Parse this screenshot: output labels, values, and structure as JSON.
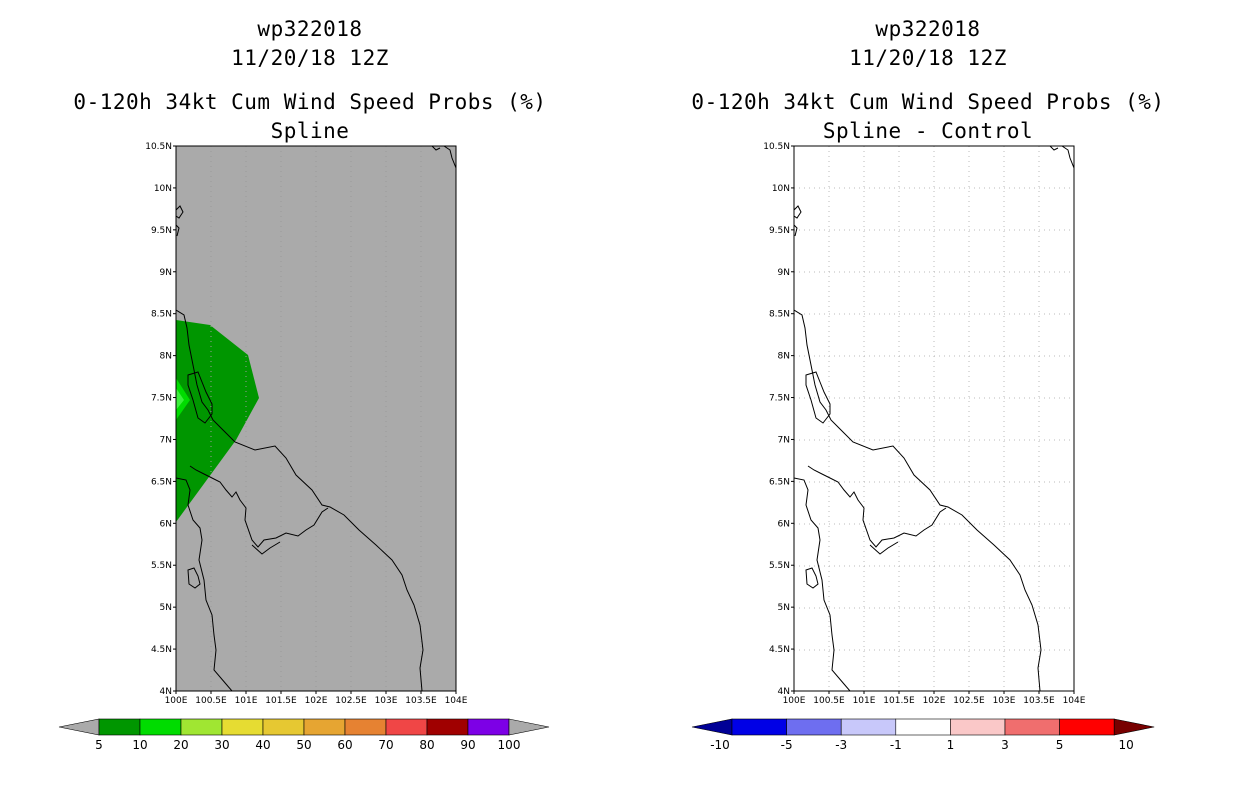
{
  "left_panel": {
    "storm_id": "wp322018",
    "datetime": "11/20/18 12Z",
    "product": "0-120h 34kt Cum Wind Speed Probs (%)",
    "subtitle": "Spline"
  },
  "right_panel": {
    "storm_id": "wp322018",
    "datetime": "11/20/18 12Z",
    "product": "0-120h 34kt Cum Wind Speed Probs (%)",
    "subtitle": "Spline - Control"
  },
  "axes": {
    "lat_ticks": [
      "10.5N",
      "10N",
      "9.5N",
      "9N",
      "8.5N",
      "8N",
      "7.5N",
      "7N",
      "6.5N",
      "6N",
      "5.5N",
      "5N",
      "4.5N",
      "4N"
    ],
    "lon_ticks": [
      "100E",
      "100.5E",
      "101E",
      "101.5E",
      "102E",
      "102.5E",
      "103E",
      "103.5E",
      "104E"
    ]
  },
  "left_colorbar": {
    "labels": [
      "5",
      "10",
      "20",
      "30",
      "40",
      "50",
      "60",
      "70",
      "80",
      "90",
      "100"
    ],
    "colors": [
      "#009600",
      "#00dc00",
      "#a0e632",
      "#e6dc32",
      "#e6c832",
      "#e6a532",
      "#e68232",
      "#f04646",
      "#a00000",
      "#7d00e6"
    ],
    "under_color": "#aaaaaa",
    "over_color": "#aaaaaa"
  },
  "right_colorbar": {
    "labels": [
      "-10",
      "-5",
      "-3",
      "-1",
      "1",
      "3",
      "5",
      "10"
    ],
    "colors": [
      "#0000e6",
      "#6e6ef0",
      "#c8c8fa",
      "#ffffff",
      "#fac8c8",
      "#f06e6e",
      "#ff0000"
    ],
    "under_color": "#000096",
    "over_color": "#780000"
  },
  "map_colors": {
    "background_gray": "#aaaaaa",
    "prob_5_10": "#009600",
    "prob_10_20": "#00dc00"
  }
}
